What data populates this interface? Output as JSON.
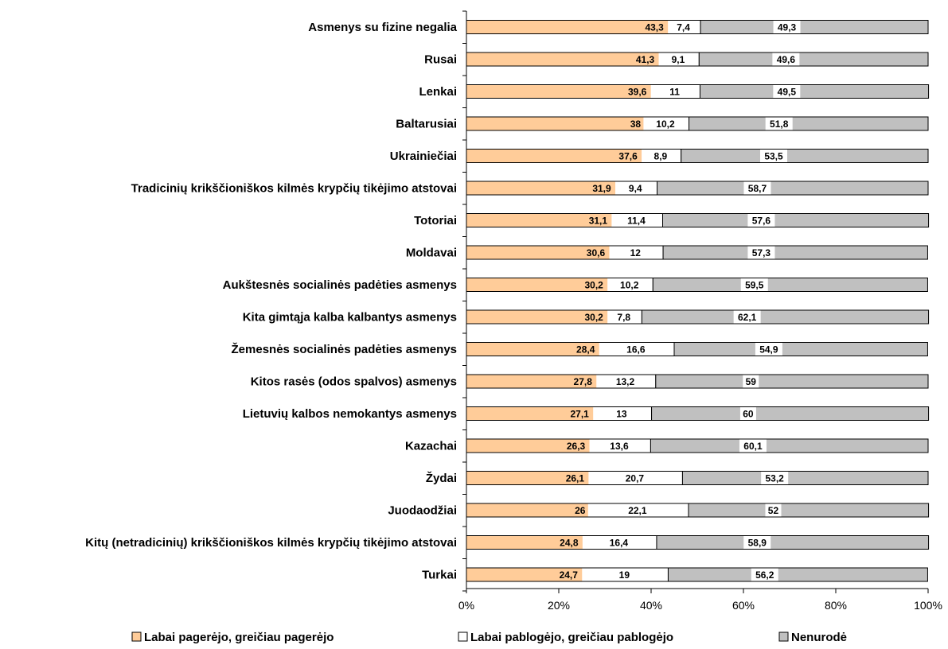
{
  "chart_data": {
    "type": "bar",
    "orientation": "horizontal",
    "stacked": "percent",
    "categories": [
      "Asmenys su fizine negalia",
      "Rusai",
      "Lenkai",
      "Baltarusiai",
      "Ukrainiečiai",
      "Tradicinių krikščioniškos kilmės krypčių tikėjimo atstovai",
      "Totoriai",
      "Moldavai",
      "Aukštesnės socialinės padėties asmenys",
      "Kita gimtąja kalba kalbantys asmenys",
      "Žemesnės socialinės padėties asmenys",
      "Kitos rasės (odos spalvos) asmenys",
      "Lietuvių kalbos nemokantys asmenys",
      "Kazachai",
      "Žydai",
      "Juodaodžiai",
      "Kitų (netradicinių) krikščioniškos kilmės krypčių tikėjimo atstovai",
      "Turkai"
    ],
    "series": [
      {
        "name": "Labai pagerėjo, greičiau pagerėjo",
        "color": "#ffcc99",
        "values": [
          43.3,
          41.3,
          39.6,
          38,
          37.6,
          31.9,
          31.1,
          30.6,
          30.2,
          30.2,
          28.4,
          27.8,
          27.1,
          26.3,
          26.1,
          26,
          24.8,
          24.7
        ],
        "labels": [
          "43,3",
          "41,3",
          "39,6",
          "38",
          "37,6",
          "31,9",
          "31,1",
          "30,6",
          "30,2",
          "30,2",
          "28,4",
          "27,8",
          "27,1",
          "26,3",
          "26,1",
          "26",
          "24,8",
          "24,7"
        ]
      },
      {
        "name": "Labai pablogėjo, greičiau pablogėjo",
        "color": "#ffffff",
        "values": [
          7.4,
          9.1,
          11,
          10.2,
          8.9,
          9.4,
          11.4,
          12,
          10.2,
          7.8,
          16.6,
          13.2,
          13,
          13.6,
          20.7,
          22.1,
          16.4,
          19
        ],
        "labels": [
          "7,4",
          "9,1",
          "11",
          "10,2",
          "8,9",
          "9,4",
          "11,4",
          "12",
          "10,2",
          "7,8",
          "16,6",
          "13,2",
          "13",
          "13,6",
          "20,7",
          "22,1",
          "16,4",
          "19"
        ]
      },
      {
        "name": "Nenurodė",
        "color": "#c0c0c0",
        "values": [
          49.3,
          49.6,
          49.5,
          51.8,
          53.5,
          58.7,
          57.6,
          57.3,
          59.5,
          62.1,
          54.9,
          59,
          60,
          60.1,
          53.2,
          52,
          58.9,
          56.2
        ],
        "labels": [
          "49,3",
          "49,6",
          "49,5",
          "51,8",
          "53,5",
          "58,7",
          "57,6",
          "57,3",
          "59,5",
          "62,1",
          "54,9",
          "59",
          "60",
          "60,1",
          "53,2",
          "52",
          "58,9",
          "56,2"
        ]
      }
    ],
    "x_ticks": [
      "0%",
      "20%",
      "40%",
      "60%",
      "80%",
      "100%"
    ],
    "xlim": [
      0,
      100
    ],
    "legend_position": "bottom",
    "grid": false
  }
}
